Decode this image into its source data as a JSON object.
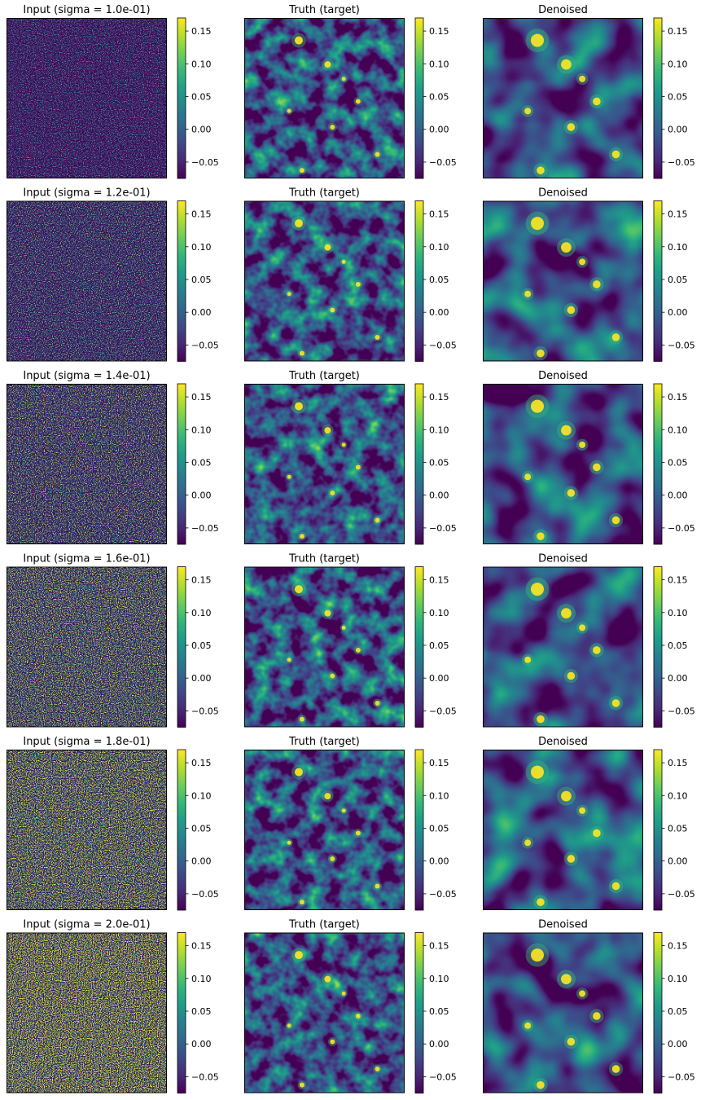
{
  "chart_data": {
    "type": "heatmap",
    "layout": {
      "rows": 6,
      "cols": 3
    },
    "colormap": "viridis",
    "colormap_stops": [
      "#440154",
      "#482878",
      "#3e4989",
      "#31688e",
      "#26828e",
      "#1f9e89",
      "#35b779",
      "#6ece58",
      "#b5de2b",
      "#fde725"
    ],
    "color_range": [
      -0.075,
      0.17
    ],
    "colorbar_ticks": [
      0.15,
      0.1,
      0.05,
      0.0,
      -0.05
    ],
    "colorbar_tick_labels": [
      "0.15",
      "0.10",
      "0.05",
      "0.00",
      "−0.05"
    ],
    "column_titles": {
      "truth": "Truth (target)",
      "denoised": "Denoised"
    },
    "rows": [
      {
        "sigma": 0.1,
        "input_title": "Input (sigma = 1.0e-01)"
      },
      {
        "sigma": 0.12,
        "input_title": "Input (sigma = 1.2e-01)"
      },
      {
        "sigma": 0.14,
        "input_title": "Input (sigma = 1.4e-01)"
      },
      {
        "sigma": 0.16,
        "input_title": "Input (sigma = 1.6e-01)"
      },
      {
        "sigma": 0.18,
        "input_title": "Input (sigma = 1.8e-01)"
      },
      {
        "sigma": 0.2,
        "input_title": "Input (sigma = 2.0e-01)"
      }
    ]
  }
}
